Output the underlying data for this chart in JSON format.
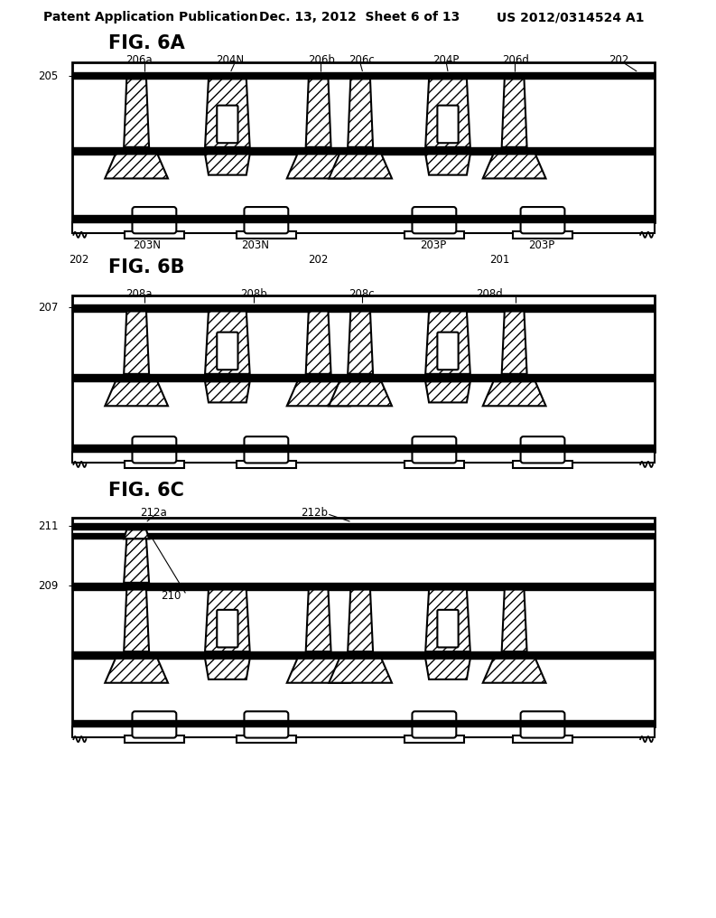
{
  "header_left": "Patent Application Publication",
  "header_center": "Dec. 13, 2012  Sheet 6 of 13",
  "header_right": "US 2012/0314524 A1",
  "bg_color": "#ffffff"
}
